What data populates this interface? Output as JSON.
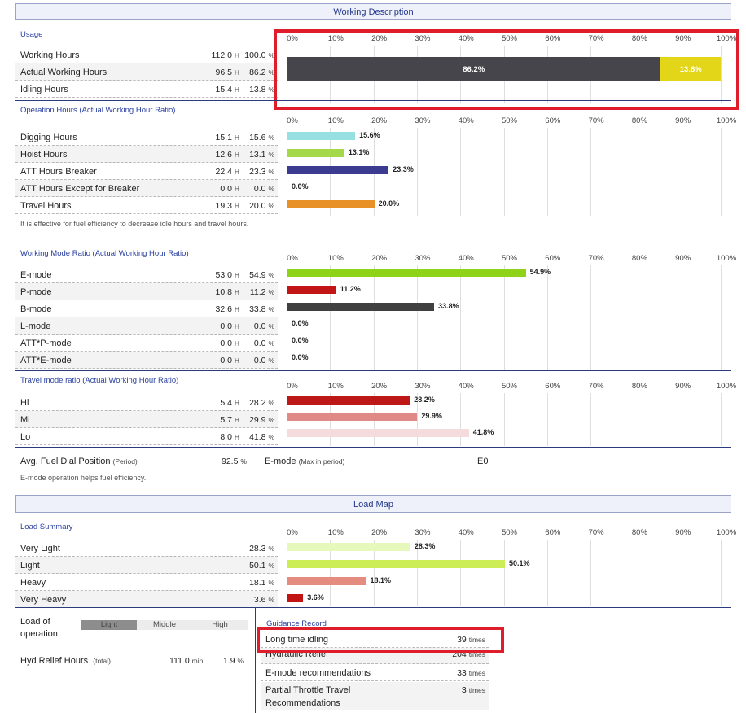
{
  "working_description": {
    "banner": "Working Description",
    "usage_title": "Usage",
    "usage_rows": [
      {
        "label": "Working Hours",
        "hours": "112.0",
        "unit": "H",
        "pct": "100.0",
        "pct_unit": "%"
      },
      {
        "label": "Actual Working Hours",
        "hours": "96.5",
        "unit": "H",
        "pct": "86.2",
        "pct_unit": "%"
      },
      {
        "label": "Idling Hours",
        "hours": "15.4",
        "unit": "H",
        "pct": "13.8",
        "pct_unit": "%"
      }
    ],
    "op_title": "Operation Hours (Actual Working Hour Ratio)",
    "op_rows": [
      {
        "label": "Digging Hours",
        "hours": "15.1",
        "unit": "H",
        "pct": "15.6",
        "pct_unit": "%"
      },
      {
        "label": "Hoist Hours",
        "hours": "12.6",
        "unit": "H",
        "pct": "13.1",
        "pct_unit": "%"
      },
      {
        "label": "ATT Hours Breaker",
        "hours": "22.4",
        "unit": "H",
        "pct": "23.3",
        "pct_unit": "%"
      },
      {
        "label": "ATT Hours Except for Breaker",
        "hours": "0.0",
        "unit": "H",
        "pct": "0.0",
        "pct_unit": "%"
      },
      {
        "label": "Travel Hours",
        "hours": "19.3",
        "unit": "H",
        "pct": "20.0",
        "pct_unit": "%"
      }
    ],
    "op_note": "It is effective for fuel efficiency to decrease idle hours and travel hours.",
    "wm_title": "Working Mode Ratio (Actual Working Hour Ratio)",
    "wm_rows": [
      {
        "label": "E-mode",
        "hours": "53.0",
        "unit": "H",
        "pct": "54.9",
        "pct_unit": "%"
      },
      {
        "label": "P-mode",
        "hours": "10.8",
        "unit": "H",
        "pct": "11.2",
        "pct_unit": "%"
      },
      {
        "label": "B-mode",
        "hours": "32.6",
        "unit": "H",
        "pct": "33.8",
        "pct_unit": "%"
      },
      {
        "label": "L-mode",
        "hours": "0.0",
        "unit": "H",
        "pct": "0.0",
        "pct_unit": "%"
      },
      {
        "label": "ATT*P-mode",
        "hours": "0.0",
        "unit": "H",
        "pct": "0.0",
        "pct_unit": "%"
      },
      {
        "label": "ATT*E-mode",
        "hours": "0.0",
        "unit": "H",
        "pct": "0.0",
        "pct_unit": "%"
      }
    ],
    "tm_title": "Travel mode ratio (Actual Working Hour Ratio)",
    "tm_rows": [
      {
        "label": "Hi",
        "hours": "5.4",
        "unit": "H",
        "pct": "28.2",
        "pct_unit": "%"
      },
      {
        "label": "Mi",
        "hours": "5.7",
        "unit": "H",
        "pct": "29.9",
        "pct_unit": "%"
      },
      {
        "label": "Lo",
        "hours": "8.0",
        "unit": "H",
        "pct": "41.8",
        "pct_unit": "%"
      }
    ],
    "fuel_dial": {
      "label": "Avg. Fuel Dial Position",
      "sub": "(Period)",
      "value": "92.5",
      "unit": "%"
    },
    "emode_max": {
      "label": "E-mode",
      "sub": "(Max in period)",
      "value": "E0"
    },
    "fuel_note": "E-mode operation helps fuel efficiency."
  },
  "load_map": {
    "banner": "Load Map",
    "summary_title": "Load Summary",
    "rows": [
      {
        "label": "Very Light",
        "pct": "28.3",
        "pct_unit": "%"
      },
      {
        "label": "Light",
        "pct": "50.1",
        "pct_unit": "%"
      },
      {
        "label": "Heavy",
        "pct": "18.1",
        "pct_unit": "%"
      },
      {
        "label": "Very Heavy",
        "pct": "3.6",
        "pct_unit": "%"
      }
    ],
    "load_of_operation": {
      "label_line1": "Load of",
      "label_line2": "operation",
      "segments": [
        "Light",
        "Middle",
        "High"
      ]
    },
    "hyd_relief": {
      "label": "Hyd Relief Hours",
      "sub": "(total)",
      "minutes": "111.0",
      "min_unit": "min",
      "pct": "1.9",
      "pct_unit": "%"
    },
    "guidance": {
      "title": "Guidance Record",
      "rows": [
        {
          "label": "Long time idling",
          "count": "39",
          "unit": "times"
        },
        {
          "label": "Hydraulic Relief",
          "count": "204",
          "unit": "times"
        },
        {
          "label": "E-mode recommendations",
          "count": "33",
          "unit": "times"
        },
        {
          "label": "Partial Throttle Travel",
          "label2": "Recommendations",
          "count": "3",
          "unit": "times"
        }
      ]
    }
  },
  "chart_data": [
    {
      "type": "bar",
      "name": "usage",
      "stacked": true,
      "categories": [
        "Actual Working Hours",
        "Idling Hours"
      ],
      "values": [
        86.2,
        13.8
      ],
      "labels": [
        "86.2%",
        "13.8%"
      ],
      "colors": [
        "#45454b",
        "#e3d517"
      ],
      "xlim": [
        0,
        100
      ],
      "ticks": [
        "0%",
        "10%",
        "20%",
        "30%",
        "40%",
        "50%",
        "60%",
        "70%",
        "80%",
        "90%",
        "100%"
      ]
    },
    {
      "type": "bar",
      "name": "operation",
      "categories": [
        "Digging Hours",
        "Hoist Hours",
        "ATT Hours Breaker",
        "ATT Hours Except for Breaker",
        "Travel Hours"
      ],
      "values": [
        15.6,
        13.1,
        23.3,
        0.0,
        20.0
      ],
      "labels": [
        "15.6%",
        "13.1%",
        "23.3%",
        "0.0%",
        "20.0%"
      ],
      "colors": [
        "#96e0e4",
        "#a6d84c",
        "#3b3b8f",
        "#3b3b8f",
        "#e89126"
      ],
      "xlim": [
        0,
        100
      ],
      "ticks": [
        "0%",
        "10%",
        "20%",
        "30%",
        "40%",
        "50%",
        "60%",
        "70%",
        "80%",
        "90%",
        "100%"
      ]
    },
    {
      "type": "bar",
      "name": "working_mode",
      "categories": [
        "E-mode",
        "P-mode",
        "B-mode",
        "L-mode",
        "ATT*P-mode",
        "ATT*E-mode"
      ],
      "values": [
        54.9,
        11.2,
        33.8,
        0.0,
        0.0,
        0.0
      ],
      "labels": [
        "54.9%",
        "11.2%",
        "33.8%",
        "0.0%",
        "0.0%",
        "0.0%"
      ],
      "colors": [
        "#8ed31a",
        "#c21515",
        "#404040",
        "#404040",
        "#404040",
        "#404040"
      ],
      "xlim": [
        0,
        100
      ],
      "ticks": [
        "0%",
        "10%",
        "20%",
        "30%",
        "40%",
        "50%",
        "60%",
        "70%",
        "80%",
        "90%",
        "100%"
      ]
    },
    {
      "type": "bar",
      "name": "travel_mode",
      "categories": [
        "Hi",
        "Mi",
        "Lo"
      ],
      "values": [
        28.2,
        29.9,
        41.8
      ],
      "labels": [
        "28.2%",
        "29.9%",
        "41.8%"
      ],
      "colors": [
        "#bd1717",
        "#e08a85",
        "#f3dcdb"
      ],
      "xlim": [
        0,
        100
      ],
      "ticks": [
        "0%",
        "10%",
        "20%",
        "30%",
        "40%",
        "50%",
        "60%",
        "70%",
        "80%",
        "90%",
        "100%"
      ]
    },
    {
      "type": "bar",
      "name": "load_summary",
      "categories": [
        "Very Light",
        "Light",
        "Heavy",
        "Very Heavy"
      ],
      "values": [
        28.3,
        50.1,
        18.1,
        3.6
      ],
      "labels": [
        "28.3%",
        "50.1%",
        "18.1%",
        "3.6%"
      ],
      "colors": [
        "#e7f8bc",
        "#cced56",
        "#e48c80",
        "#c31414"
      ],
      "xlim": [
        0,
        100
      ],
      "ticks": [
        "0%",
        "10%",
        "20%",
        "30%",
        "40%",
        "50%",
        "60%",
        "70%",
        "80%",
        "90%",
        "100%"
      ]
    }
  ]
}
